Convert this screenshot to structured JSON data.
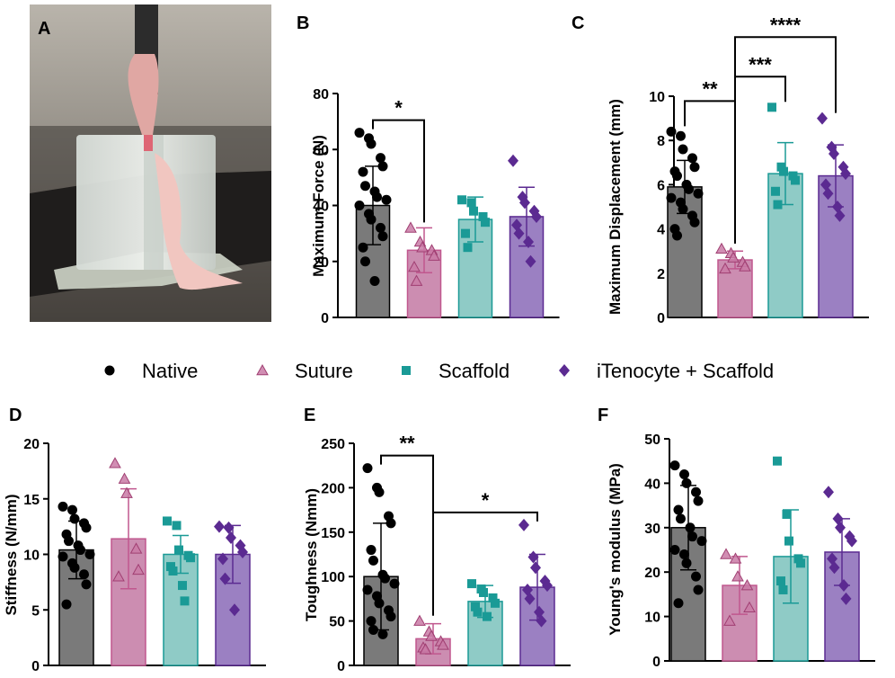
{
  "photo": {
    "panel_label": "A",
    "description": "mouse hindlimb tendon clamped in tensile testing fixture"
  },
  "legend": {
    "groups": [
      {
        "label": "Native",
        "marker": "circle",
        "color": "#000000"
      },
      {
        "label": "Suture",
        "marker": "triangle",
        "color": "#c0578e"
      },
      {
        "label": "Scaffold",
        "marker": "square",
        "color": "#1a9a96"
      },
      {
        "label": "iTenocyte + Scaffold",
        "marker": "diamond",
        "color": "#5b2a91"
      }
    ]
  },
  "colors": {
    "bar_fills": [
      "#7a7a7a",
      "#cc8db1",
      "#8fcbc6",
      "#9b80c2"
    ],
    "bar_edges": [
      "#000000",
      "#c0578e",
      "#1a9a96",
      "#5b2a91"
    ],
    "marker_fills": [
      "#000000",
      "#c97aa6",
      "#1a9a96",
      "#5b2a91"
    ]
  },
  "chart_data": [
    {
      "panel": "B",
      "type": "bar",
      "ylabel": "Maximum Force (N)",
      "ylim": [
        0,
        80
      ],
      "yticks": [
        0,
        20,
        40,
        60,
        80
      ],
      "categories": [
        "Native",
        "Suture",
        "Scaffold",
        "iTenocyte + Scaffold"
      ],
      "means": [
        40,
        24,
        35,
        36
      ],
      "sd": [
        14,
        8,
        8,
        10.5
      ],
      "points": [
        [
          66,
          64,
          62,
          57,
          54,
          52,
          47,
          45,
          43,
          42,
          40,
          37,
          35,
          32,
          29,
          25,
          20,
          13
        ],
        [
          32,
          27,
          25,
          24,
          22,
          18,
          13
        ],
        [
          42,
          41,
          38,
          36,
          34,
          30,
          25
        ],
        [
          56,
          43,
          41,
          38,
          36,
          33,
          30,
          27,
          20
        ]
      ],
      "significance": [
        {
          "from": 0,
          "to": 1,
          "label": "*",
          "level": 0
        }
      ]
    },
    {
      "panel": "C",
      "type": "bar",
      "ylabel": "Maximum Displacement (mm)",
      "ylim": [
        0,
        10
      ],
      "yticks": [
        0,
        2,
        4,
        6,
        8,
        10
      ],
      "categories": [
        "Native",
        "Suture",
        "Scaffold",
        "iTenocyte + Scaffold"
      ],
      "means": [
        5.9,
        2.6,
        6.5,
        6.4
      ],
      "sd": [
        1.2,
        0.4,
        1.4,
        1.4
      ],
      "points": [
        [
          8.4,
          8.2,
          7.6,
          7.2,
          6.8,
          6.6,
          6.4,
          6.0,
          5.8,
          5.6,
          5.4,
          5.2,
          4.9,
          4.6,
          4.3,
          4.0,
          3.7
        ],
        [
          3.1,
          2.9,
          2.7,
          2.5,
          2.3,
          2.2
        ],
        [
          9.5,
          6.8,
          6.6,
          6.4,
          6.2,
          5.7,
          5.1
        ],
        [
          9.0,
          7.7,
          7.4,
          6.8,
          6.5,
          6.0,
          5.6,
          5.0,
          4.6
        ]
      ],
      "significance": [
        {
          "from": 0,
          "to": 1,
          "label": "**",
          "level": 0
        },
        {
          "from": 1,
          "to": 2,
          "label": "***",
          "level": 0
        },
        {
          "from": 1,
          "to": 3,
          "label": "****",
          "level": 1
        }
      ]
    },
    {
      "panel": "D",
      "type": "bar",
      "ylabel": "Stiffness (N/mm)",
      "ylim": [
        0,
        20
      ],
      "yticks": [
        0,
        5,
        10,
        15,
        20
      ],
      "categories": [
        "Native",
        "Suture",
        "Scaffold",
        "iTenocyte + Scaffold"
      ],
      "means": [
        10.4,
        11.4,
        10.0,
        10.0
      ],
      "sd": [
        2.6,
        4.5,
        1.7,
        2.6
      ],
      "points": [
        [
          14.3,
          14.0,
          13.2,
          12.8,
          12.4,
          11.8,
          11.2,
          10.8,
          10.4,
          10.0,
          9.8,
          9.2,
          8.8,
          8.2,
          7.3,
          5.5
        ],
        [
          18.2,
          16.8,
          15.5,
          10.5,
          8.6,
          8.0
        ],
        [
          13.0,
          12.6,
          10.4,
          9.9,
          9.7,
          8.9,
          8.5,
          7.2,
          5.8
        ],
        [
          12.5,
          12.4,
          11.5,
          10.8,
          10.2,
          9.6,
          7.8,
          5.0
        ]
      ],
      "significance": []
    },
    {
      "panel": "E",
      "type": "bar",
      "ylabel": "Toughness (Nmm)",
      "ylim": [
        0,
        250
      ],
      "yticks": [
        0,
        50,
        100,
        150,
        200,
        250
      ],
      "categories": [
        "Native",
        "Suture",
        "Scaffold",
        "iTenocyte + Scaffold"
      ],
      "means": [
        100,
        30,
        72,
        88
      ],
      "sd": [
        60,
        17,
        18,
        37
      ],
      "points": [
        [
          222,
          200,
          195,
          168,
          160,
          130,
          118,
          102,
          98,
          92,
          85,
          78,
          70,
          62,
          55,
          50,
          40,
          35
        ],
        [
          50,
          38,
          33,
          27,
          23,
          20,
          18
        ],
        [
          92,
          86,
          82,
          76,
          70,
          66,
          60,
          55
        ],
        [
          158,
          122,
          110,
          95,
          90,
          85,
          75,
          60,
          50
        ]
      ],
      "significance": [
        {
          "from": 0,
          "to": 1,
          "label": "**",
          "level": 0
        },
        {
          "from": 1,
          "to": 3,
          "label": "*",
          "level": 0
        }
      ]
    },
    {
      "panel": "F",
      "type": "bar",
      "ylabel": "Young's modulus (MPa)",
      "ylim": [
        0,
        50
      ],
      "yticks": [
        0,
        10,
        20,
        30,
        40,
        50
      ],
      "categories": [
        "Native",
        "Suture",
        "Scaffold",
        "iTenocyte + Scaffold"
      ],
      "means": [
        30,
        17,
        23.5,
        24.5
      ],
      "sd": [
        9.5,
        6.5,
        10.5,
        7.5
      ],
      "points": [
        [
          44,
          42,
          40,
          38,
          36,
          34,
          32,
          30,
          28,
          27,
          25,
          24,
          22,
          19,
          16,
          13
        ],
        [
          24,
          23,
          19,
          17,
          12,
          9
        ],
        [
          45,
          33,
          27,
          23,
          22,
          18,
          16
        ],
        [
          38,
          32,
          30,
          28,
          27,
          23,
          21,
          17,
          14
        ]
      ],
      "significance": []
    }
  ]
}
